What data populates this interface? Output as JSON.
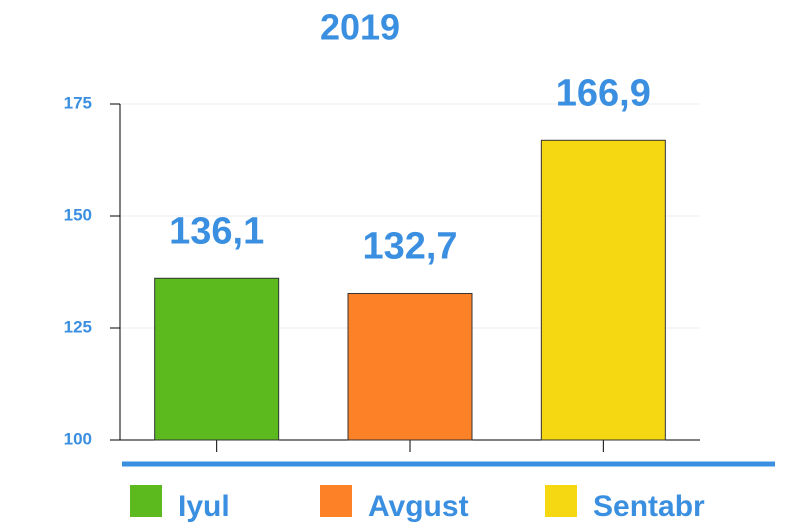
{
  "chart_data": {
    "type": "bar",
    "title": "2019",
    "categories": [
      "Iyul",
      "Avgust",
      "Sentabr"
    ],
    "values": [
      136.1,
      132.7,
      166.9
    ],
    "value_labels": [
      "136,1",
      "132,7",
      "166,9"
    ],
    "colors": [
      "#5cba1e",
      "#fd8127",
      "#f6d812"
    ],
    "ylim": [
      100,
      175
    ],
    "yticks": [
      100,
      125,
      150,
      175
    ],
    "grid": true
  }
}
